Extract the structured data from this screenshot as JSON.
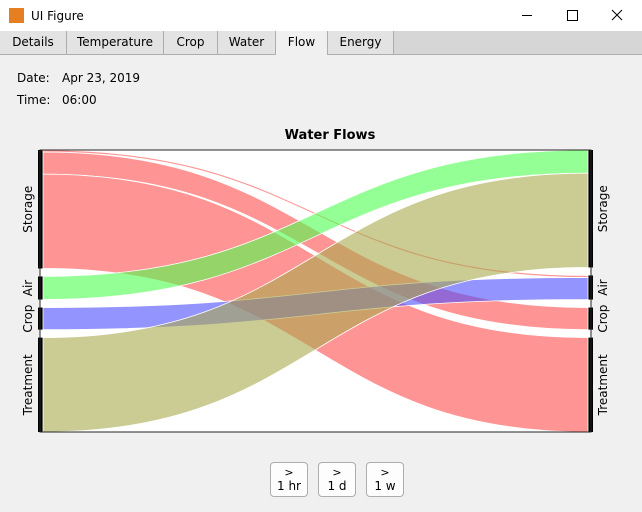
{
  "window": {
    "title": "UI Figure"
  },
  "tabs": [
    "Details",
    "Temperature",
    "Crop",
    "Water",
    "Flow",
    "Energy"
  ],
  "selected_tab": "Flow",
  "info": {
    "date_label": "Date:",
    "date": "Apr 23, 2019",
    "time_label": "Time:",
    "time": "06:00"
  },
  "chart_data": {
    "type": "sankey",
    "title": "Water Flows",
    "nodes": [
      {
        "name": "Storage",
        "color": "#ff4d4d"
      },
      {
        "name": "Air",
        "color": "#4dff4d"
      },
      {
        "name": "Crop",
        "color": "#4d4dff"
      },
      {
        "name": "Treatment",
        "color": "#a8a84d"
      }
    ],
    "flows": [
      {
        "source": 0,
        "target": 1,
        "value": 2
      },
      {
        "source": 0,
        "target": 2,
        "value": 22
      },
      {
        "source": 0,
        "target": 3,
        "value": 94
      },
      {
        "source": 1,
        "target": 0,
        "value": 23
      },
      {
        "source": 2,
        "target": 1,
        "value": 22
      },
      {
        "source": 3,
        "target": 0,
        "value": 94
      }
    ]
  },
  "buttons": [
    {
      "arrow": ">",
      "label": "1 hr"
    },
    {
      "arrow": ">",
      "label": "1 d"
    },
    {
      "arrow": ">",
      "label": "1 w"
    }
  ]
}
